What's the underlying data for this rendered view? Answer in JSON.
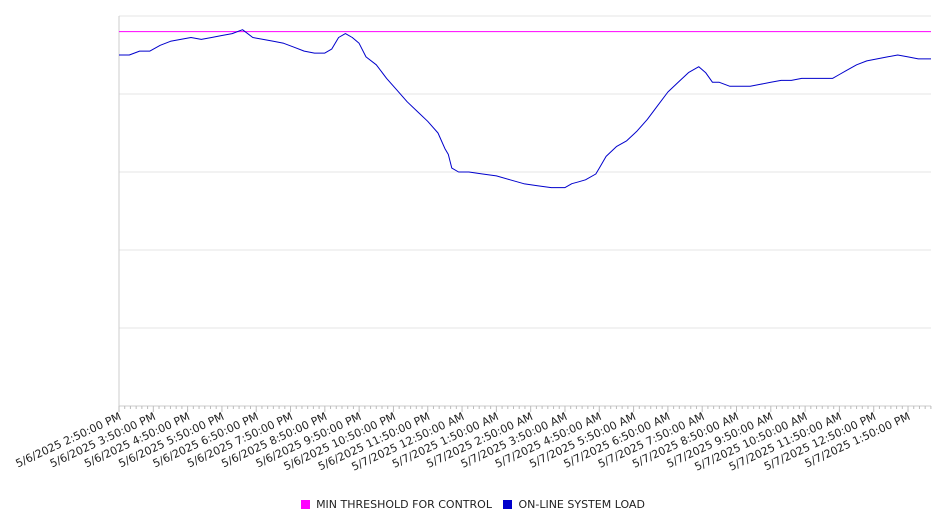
{
  "chart_data": {
    "type": "line",
    "title": "",
    "xlabel": "",
    "ylabel": "",
    "ylim": [
      0,
      100
    ],
    "grid": true,
    "legend_position": "bottom",
    "x_tick_labels": [
      "5/6/2025 2:50:00 PM",
      "5/6/2025 3:50:00 PM",
      "5/6/2025 4:50:00 PM",
      "5/6/2025 5:50:00 PM",
      "5/6/2025 6:50:00 PM",
      "5/6/2025 7:50:00 PM",
      "5/6/2025 8:50:00 PM",
      "5/6/2025 9:50:00 PM",
      "5/6/2025 10:50:00 PM",
      "5/6/2025 11:50:00 PM",
      "5/7/2025 12:50:00 AM",
      "5/7/2025 1:50:00 AM",
      "5/7/2025 2:50:00 AM",
      "5/7/2025 3:50:00 AM",
      "5/7/2025 4:50:00 AM",
      "5/7/2025 5:50:00 AM",
      "5/7/2025 6:50:00 AM",
      "5/7/2025 7:50:00 AM",
      "5/7/2025 8:50:00 AM",
      "5/7/2025 9:50:00 AM",
      "5/7/2025 10:50:00 AM",
      "5/7/2025 11:50:00 AM",
      "5/7/2025 12:50:00 PM",
      "5/7/2025 1:50:00 PM"
    ],
    "series": [
      {
        "name": "MIN THRESHOLD FOR CONTROL",
        "color": "#ff00ff",
        "x": [
          0,
          23.67
        ],
        "values": [
          96,
          96
        ]
      },
      {
        "name": "ON-LINE SYSTEM LOAD",
        "color": "#0000cc",
        "x": [
          0,
          0.3,
          0.6,
          0.9,
          1.2,
          1.5,
          1.8,
          2.1,
          2.4,
          2.7,
          3.0,
          3.3,
          3.6,
          3.9,
          4.2,
          4.5,
          4.8,
          5.1,
          5.4,
          5.7,
          6.0,
          6.2,
          6.4,
          6.6,
          6.8,
          7.0,
          7.2,
          7.5,
          7.8,
          8.1,
          8.4,
          8.7,
          9.0,
          9.3,
          9.5,
          9.6,
          9.7,
          9.9,
          10.2,
          10.6,
          11.0,
          11.4,
          11.8,
          12.2,
          12.6,
          13.0,
          13.2,
          13.4,
          13.6,
          13.9,
          14.0,
          14.2,
          14.5,
          14.8,
          15.1,
          15.4,
          15.7,
          16.0,
          16.3,
          16.6,
          16.9,
          17.1,
          17.3,
          17.5,
          17.8,
          18.1,
          18.4,
          18.7,
          19.0,
          19.3,
          19.6,
          19.9,
          20.2,
          20.5,
          20.8,
          21.0,
          21.2,
          21.5,
          21.8,
          22.1,
          22.4,
          22.7,
          23.0,
          23.3,
          23.67
        ],
        "values": [
          90,
          90,
          91,
          91,
          92.5,
          93.5,
          94,
          94.5,
          94,
          94.5,
          95,
          95.5,
          96.5,
          94.5,
          94,
          93.5,
          93,
          92,
          91,
          90.5,
          90.5,
          91.5,
          94.5,
          95.5,
          94.5,
          93,
          89.5,
          87.5,
          84,
          81,
          78,
          75.5,
          73,
          70,
          66,
          64.5,
          61,
          60,
          60,
          59.5,
          59,
          58,
          57,
          56.5,
          56,
          56,
          57,
          57.5,
          58,
          59.5,
          61,
          64,
          66.5,
          68,
          70.5,
          73.5,
          77,
          80.5,
          83,
          85.5,
          87,
          85.5,
          83,
          83,
          82,
          82,
          82,
          82.5,
          83,
          83.5,
          83.5,
          84,
          84,
          84,
          84,
          85,
          86,
          87.5,
          88.5,
          89,
          89.5,
          90,
          89.5,
          89,
          89
        ]
      }
    ]
  }
}
